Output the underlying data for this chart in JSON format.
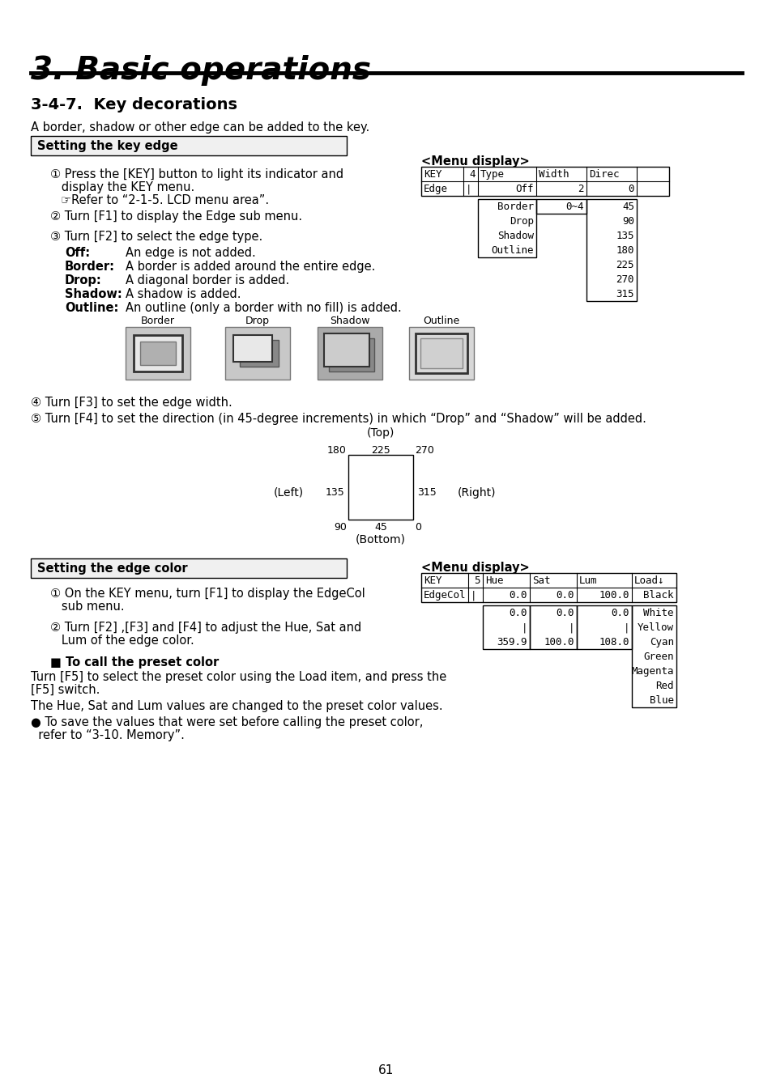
{
  "title": "3. Basic operations",
  "section": "3-4-7.  Key decorations",
  "section_intro": "A border, shadow or other edge can be added to the key.",
  "box1_title": "Setting the key edge",
  "step1_line1": "① Press the [KEY] button to light its indicator and",
  "step1_line2": "   display the KEY menu.",
  "step1_sub": "☞Refer to “2-1-5. LCD menu area”.",
  "step2": "② Turn [F1] to display the Edge sub menu.",
  "step3": "③ Turn [F2] to select the edge type.",
  "edge_types": [
    [
      "Off:",
      "An edge is not added."
    ],
    [
      "Border:",
      "A border is added around the entire edge."
    ],
    [
      "Drop:",
      "A diagonal border is added."
    ],
    [
      "Shadow:",
      "A shadow is added."
    ],
    [
      "Outline:",
      "An outline (only a border with no fill) is added."
    ]
  ],
  "menu_display1_title": "<Menu display>",
  "table1_col_widths": [
    52,
    18,
    72,
    62,
    62,
    40
  ],
  "table1_header": [
    "KEY",
    "4",
    "Type",
    "Width",
    "Direc",
    ""
  ],
  "table1_row": [
    "Edge",
    "|",
    "Off",
    "2",
    "0",
    ""
  ],
  "table1_dropdown_left": [
    "Border",
    "Drop",
    "Shadow",
    "Outline"
  ],
  "table1_dropdown_mid": [
    "0~4"
  ],
  "table1_dropdown_right": [
    "45",
    "90",
    "135",
    "180",
    "225",
    "270",
    "315"
  ],
  "border_images": [
    "Border",
    "Drop",
    "Shadow",
    "Outline"
  ],
  "step4": "④ Turn [F3] to set the edge width.",
  "step5": "⑤ Turn [F4] to set the direction (in 45-degree increments) in which “Drop” and “Shadow” will be added.",
  "dir_top": "(Top)",
  "dir_bottom": "(Bottom)",
  "dir_left": "(Left)",
  "dir_right": "(Right)",
  "dir_vals_top": [
    "180",
    "225",
    "270"
  ],
  "dir_vals_mid": [
    "135",
    "315"
  ],
  "dir_vals_bot": [
    "90",
    "45",
    "0"
  ],
  "box2_title": "Setting the edge color",
  "menu_display2_title": "<Menu display>",
  "table2_col_widths": [
    58,
    18,
    58,
    58,
    68,
    55
  ],
  "table2_header": [
    "KEY",
    "5",
    "Hue",
    "Sat",
    "Lum",
    "Load↓"
  ],
  "table2_row": [
    "EdgeCol",
    "|",
    "0.0",
    "0.0",
    "100.0",
    "Black"
  ],
  "table2_dropdown_hue": [
    "0.0",
    "|",
    "359.9"
  ],
  "table2_dropdown_sat": [
    "0.0",
    "|",
    "100.0"
  ],
  "table2_dropdown_lum": [
    "0.0",
    "|",
    "108.0"
  ],
  "table2_dropdown_color": [
    "White",
    "Yellow",
    "Cyan",
    "Green",
    "Magenta",
    "Red",
    "Blue"
  ],
  "step_b1_line1": "① On the KEY menu, turn [F1] to display the EdgeCol",
  "step_b1_line2": "   sub menu.",
  "step_b2_line1": "② Turn [F2] ,[F3] and [F4] to adjust the Hue, Sat and",
  "step_b2_line2": "   Lum of the edge color.",
  "preset_title": "■ To call the preset color",
  "preset_text1a": "Turn [F5] to select the preset color using the Load item, and press the",
  "preset_text1b": "[F5] switch.",
  "preset_text2": "The Hue, Sat and Lum values are changed to the preset color values.",
  "preset_text3a": "● To save the values that were set before calling the preset color,",
  "preset_text3b": "  refer to “3-10. Memory”.",
  "page_number": "61",
  "bg_color": "#ffffff"
}
